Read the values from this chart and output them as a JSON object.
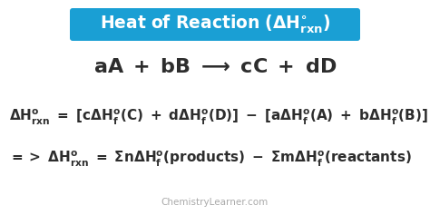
{
  "bg_color": "#ffffff",
  "banner_color": "#1a9fd4",
  "banner_text_color": "#ffffff",
  "text_color": "#2d2d2d",
  "watermark_color": "#aaaaaa",
  "watermark": "ChemistryLearner.com",
  "font_size_banner": 13.5,
  "font_size_reaction": 16,
  "font_size_eq": 11,
  "font_size_watermark": 7.5
}
